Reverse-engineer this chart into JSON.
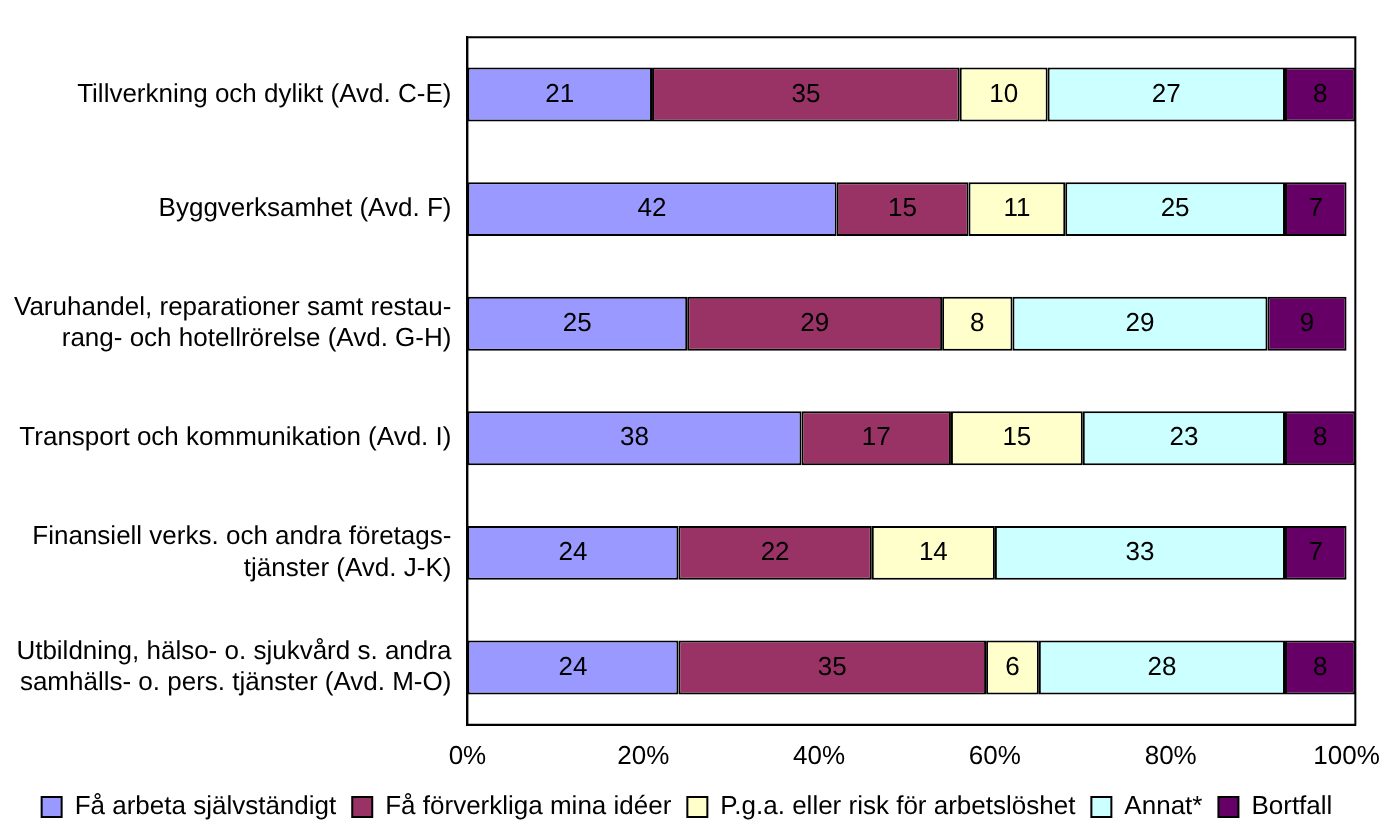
{
  "chart_data": {
    "type": "bar",
    "orientation": "horizontal",
    "stacked": true,
    "data_labels": true,
    "grid": false,
    "legend": "bottom",
    "categories": [
      "Tillverkning och dylikt (Avd. C-E)",
      "Byggverksamhet (Avd. F)",
      "Varuhandel, reparationer samt restau-\nrang- och hotellrörelse (Avd. G-H)",
      "Transport och kommunikation (Avd. I)",
      "Finansiell verks. och andra företags-\ntjänster (Avd. J-K)",
      "Utbildning, hälso- o. sjukvård s. andra\nsamhälls- o. pers. tjänster (Avd. M-O)"
    ],
    "xlim": [
      0,
      101
    ],
    "xticks": [
      {
        "value": 0,
        "label": "0%"
      },
      {
        "value": 20,
        "label": "20%"
      },
      {
        "value": 40,
        "label": "40%"
      },
      {
        "value": 60,
        "label": "60%"
      },
      {
        "value": 80,
        "label": "80%"
      },
      {
        "value": 100,
        "label": "100%"
      }
    ],
    "series": [
      {
        "name": "Få arbeta självständigt",
        "color": "#9999ff",
        "values": [
          21,
          42,
          25,
          38,
          24,
          24
        ]
      },
      {
        "name": "Få förverkliga mina idéer",
        "color": "#993366",
        "values": [
          35,
          15,
          29,
          17,
          22,
          35
        ]
      },
      {
        "name": "P.g.a. eller risk för arbetslöshet",
        "color": "#ffffcc",
        "values": [
          10,
          11,
          8,
          15,
          14,
          6
        ]
      },
      {
        "name": "Annat*",
        "color": "#ccffff",
        "values": [
          27,
          25,
          29,
          23,
          33,
          28
        ]
      },
      {
        "name": "Bortfall",
        "color": "#660066",
        "values": [
          8,
          7,
          9,
          8,
          7,
          8
        ]
      }
    ]
  }
}
